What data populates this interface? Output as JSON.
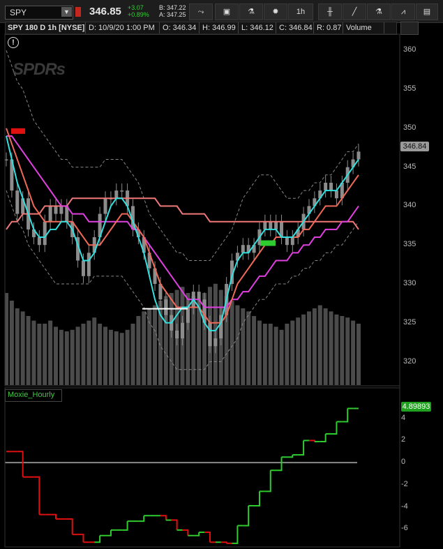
{
  "toolbar": {
    "symbol": "SPY",
    "last_price": "346.85",
    "change": "+3.07",
    "change_pct": "+0.89%",
    "bid": "B: 347.22",
    "ask": "A: 347.25",
    "interval": "1h",
    "icons": [
      "dropdown-icon",
      "alert-icon",
      "share-icon",
      "screenshot-icon",
      "flask-icon",
      "gear-icon",
      "interval-dropdown",
      "candle-style-icon",
      "drawing-line-icon",
      "studies-icon",
      "pattern-icon"
    ]
  },
  "info_bar": {
    "title": "SPY 180 D 1h [NYSE]",
    "date": "D: 10/9/20 1:00 PM",
    "open": "O: 346.34",
    "high": "H: 346.99",
    "low": "L: 346.12",
    "close": "C: 346.84",
    "range": "R: 0.87",
    "volume_label": "Volume"
  },
  "watermark": "SPDRs",
  "colors": {
    "background": "#000000",
    "candle": "#8c8c8c",
    "volume": "#4b4b4b",
    "ema_fast": "#32e0e0",
    "ema_mid": "#f06a5a",
    "ma_magenta": "#e040e0",
    "ma_pink": "#f07878",
    "bands": "#888888",
    "moxie_up": "#2ecc2e",
    "moxie_down": "#e01010"
  },
  "chart_data": [
    {
      "type": "line",
      "panel": "price",
      "ylim": [
        317,
        362
      ],
      "y_ticks": [
        360,
        355,
        350,
        345,
        340,
        335,
        330,
        325,
        320
      ],
      "last_price_label": "346.84",
      "grid": false,
      "legend": "none",
      "series": [
        {
          "role": "close",
          "values": [
            346,
            342,
            339,
            341,
            337,
            336,
            335,
            338,
            340,
            339,
            340,
            338,
            336,
            333,
            331,
            334,
            336,
            339,
            341,
            341,
            342,
            342,
            340,
            337,
            336,
            334,
            332,
            330,
            328,
            326,
            324,
            323,
            325,
            327,
            329,
            328,
            325,
            322,
            323,
            326,
            330,
            333,
            334,
            335,
            334,
            335,
            337,
            338,
            337,
            338,
            336,
            335,
            336,
            337,
            339,
            340,
            341,
            342,
            343,
            342,
            341,
            343,
            345,
            346,
            347
          ]
        },
        {
          "role": "ema_fast",
          "values": [
            349,
            346,
            343,
            341,
            339,
            337,
            336,
            336,
            337,
            337,
            338,
            338,
            337,
            335,
            333,
            333,
            334,
            336,
            338,
            340,
            341,
            341,
            340,
            338,
            336,
            334,
            331,
            328,
            326,
            325,
            325,
            326,
            327,
            327,
            328,
            327,
            325,
            324,
            324,
            325,
            328,
            331,
            333,
            334,
            334,
            335,
            336,
            337,
            337,
            337,
            336,
            336,
            336,
            337,
            338,
            339,
            340,
            341,
            342,
            342,
            342,
            343,
            344,
            345,
            346
          ]
        },
        {
          "role": "ema_mid",
          "values": [
            350,
            348,
            346,
            344,
            342,
            340,
            339,
            338,
            338,
            338,
            338,
            338,
            338,
            337,
            336,
            335,
            335,
            335,
            336,
            337,
            338,
            339,
            339,
            338,
            337,
            336,
            334,
            332,
            330,
            329,
            328,
            327,
            327,
            327,
            327,
            327,
            326,
            325,
            325,
            325,
            326,
            328,
            330,
            331,
            332,
            333,
            334,
            335,
            335,
            336,
            336,
            336,
            336,
            336,
            337,
            337,
            338,
            339,
            340,
            340,
            340,
            341,
            342,
            343,
            344
          ]
        },
        {
          "role": "ma_magenta",
          "values": [
            349,
            349,
            348,
            347,
            346,
            345,
            344,
            343,
            342,
            341,
            340,
            340,
            339,
            339,
            339,
            338,
            338,
            338,
            338,
            338,
            338,
            338,
            338,
            337,
            337,
            336,
            335,
            334,
            333,
            332,
            331,
            330,
            329,
            328,
            328,
            328,
            327,
            327,
            327,
            327,
            327,
            328,
            328,
            329,
            329,
            330,
            331,
            331,
            332,
            333,
            333,
            333,
            334,
            334,
            335,
            335,
            336,
            336,
            337,
            337,
            337,
            338,
            338,
            339,
            340
          ]
        },
        {
          "role": "ma_pink",
          "values": [
            337,
            338,
            338,
            339,
            339,
            339,
            339,
            340,
            340,
            340,
            340,
            340,
            341,
            341,
            341,
            341,
            341,
            341,
            341,
            341,
            341,
            341,
            341,
            341,
            341,
            341,
            341,
            341,
            340,
            340,
            340,
            340,
            339,
            339,
            339,
            339,
            339,
            338,
            338,
            338,
            338,
            338,
            338,
            338,
            338,
            338,
            338,
            338,
            338,
            338,
            338,
            338,
            338,
            338,
            338,
            338,
            338,
            338,
            338,
            338,
            338,
            338,
            338,
            338,
            337
          ]
        },
        {
          "role": "upper_band",
          "values": [
            360,
            358,
            356,
            355,
            353,
            351,
            350,
            349,
            348,
            347,
            346,
            346,
            345,
            345,
            345,
            345,
            345,
            345,
            346,
            346,
            346,
            346,
            345,
            344,
            343,
            341,
            339,
            338,
            337,
            336,
            335,
            334,
            334,
            333,
            333,
            333,
            333,
            333,
            334,
            335,
            336,
            337,
            339,
            341,
            342,
            343,
            344,
            344,
            344,
            343,
            342,
            341,
            341,
            341,
            342,
            342,
            343,
            343,
            344,
            344,
            345,
            346,
            347,
            347,
            348
          ]
        },
        {
          "role": "lower_band",
          "values": [
            342,
            340,
            338,
            337,
            335,
            334,
            333,
            332,
            331,
            330,
            330,
            330,
            330,
            330,
            330,
            330,
            331,
            331,
            331,
            331,
            331,
            331,
            330,
            329,
            328,
            327,
            325,
            324,
            322,
            321,
            320,
            319,
            319,
            319,
            319,
            319,
            319,
            320,
            320,
            320,
            321,
            322,
            323,
            325,
            326,
            327,
            328,
            328,
            329,
            330,
            330,
            330,
            331,
            331,
            332,
            332,
            333,
            333,
            334,
            334,
            335,
            335,
            336,
            337,
            338
          ]
        },
        {
          "role": "volume",
          "values": [
            60,
            55,
            50,
            48,
            45,
            42,
            40,
            40,
            42,
            38,
            36,
            35,
            36,
            38,
            40,
            42,
            44,
            40,
            38,
            36,
            35,
            34,
            36,
            40,
            45,
            48,
            50,
            52,
            55,
            58,
            60,
            62,
            64,
            60,
            58,
            56,
            60,
            64,
            66,
            62,
            58,
            55,
            52,
            50,
            48,
            45,
            42,
            40,
            40,
            38,
            36,
            40,
            42,
            44,
            46,
            48,
            50,
            52,
            50,
            48,
            46,
            45,
            44,
            42,
            40
          ]
        }
      ]
    },
    {
      "type": "line",
      "panel": "Moxie_Hourly",
      "title": "Moxie_Hourly",
      "ylim": [
        -7.5,
        5.5
      ],
      "y_ticks": [
        4,
        2,
        0,
        -2,
        -4,
        -6
      ],
      "last_value_label": "4.89893",
      "series": [
        {
          "role": "moxie",
          "values": [
            1,
            1,
            1,
            -1.3,
            -1.3,
            -1.3,
            -4.7,
            -4.7,
            -4.7,
            -5.1,
            -5.1,
            -5.1,
            -6.5,
            -6.5,
            -7.2,
            -7.2,
            -7.2,
            -6.6,
            -6.6,
            -6.1,
            -6.1,
            -6.1,
            -5.3,
            -5.3,
            -5.3,
            -4.8,
            -4.8,
            -4.8,
            -4.8,
            -5.2,
            -5.2,
            -6.1,
            -6.1,
            -6.6,
            -6.6,
            -6.3,
            -6.3,
            -7.2,
            -7.2,
            -7.2,
            -7.3,
            -7.3,
            -5.7,
            -5.7,
            -3.9,
            -3.9,
            -2.6,
            -2.6,
            -0.7,
            -0.7,
            0.5,
            0.5,
            0.7,
            0.7,
            2.0,
            2.0,
            1.9,
            1.9,
            2.6,
            2.6,
            3.7,
            3.7,
            4.9,
            4.9,
            4.9
          ]
        },
        {
          "role": "zero_line",
          "values": [
            0
          ]
        }
      ],
      "high_marker_color": "#2ecc2e",
      "low_marker_color": "#e01010"
    }
  ]
}
